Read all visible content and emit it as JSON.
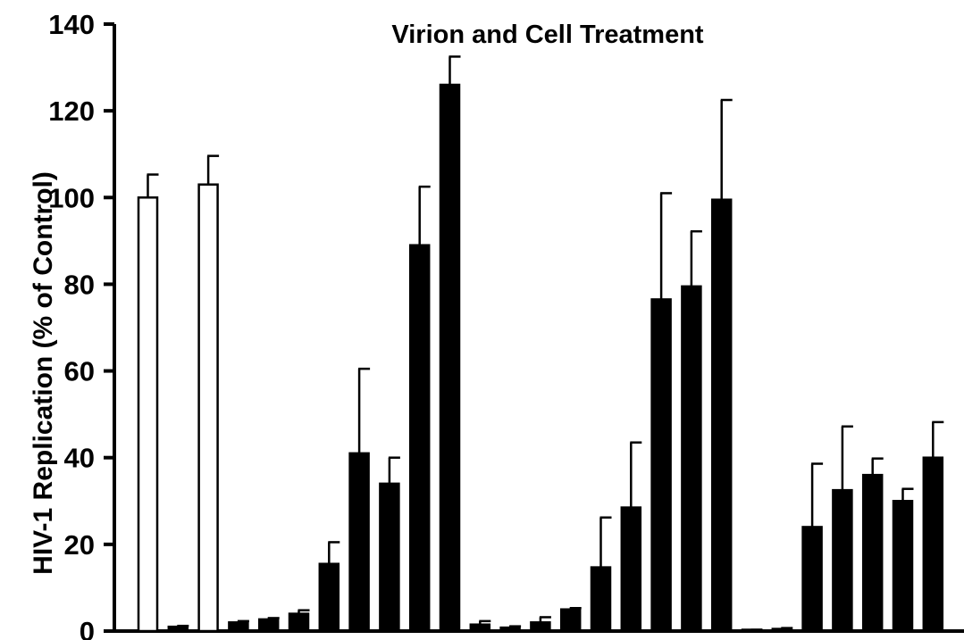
{
  "chart_data": {
    "type": "bar",
    "title": "Virion and Cell Treatment",
    "xlabel": "",
    "ylabel": "HIV-1 Replication (% of Control)",
    "ylim": [
      0,
      140
    ],
    "yticks": [
      0,
      20,
      40,
      60,
      80,
      100,
      120,
      140
    ],
    "grid": false,
    "colors": {
      "axis": "#000000",
      "filled": "#000000",
      "open": "#ffffff"
    },
    "series": [
      {
        "values": [
          100,
          1,
          103,
          2,
          2.7,
          4,
          15.5,
          41,
          34,
          89,
          126,
          1.5,
          0.8,
          2,
          5,
          14.7,
          28.5,
          76.5,
          79.5,
          99.5,
          0.2,
          0.5,
          24,
          32.5,
          36,
          30,
          40
        ],
        "errors": [
          5.3,
          0.2,
          6.6,
          0.3,
          0.3,
          0.8,
          5,
          19.5,
          6,
          13.5,
          6.5,
          0.8,
          0.3,
          1.2,
          0.3,
          11.5,
          15,
          24.5,
          12.7,
          23,
          0.1,
          0.2,
          14.6,
          14.7,
          3.8,
          2.8,
          8.2
        ],
        "fill": [
          "open",
          "filled",
          "open",
          "filled",
          "filled",
          "filled",
          "filled",
          "filled",
          "filled",
          "filled",
          "filled",
          "filled",
          "filled",
          "filled",
          "filled",
          "filled",
          "filled",
          "filled",
          "filled",
          "filled",
          "filled",
          "filled",
          "filled",
          "filled",
          "filled",
          "filled",
          "filled"
        ]
      }
    ]
  }
}
